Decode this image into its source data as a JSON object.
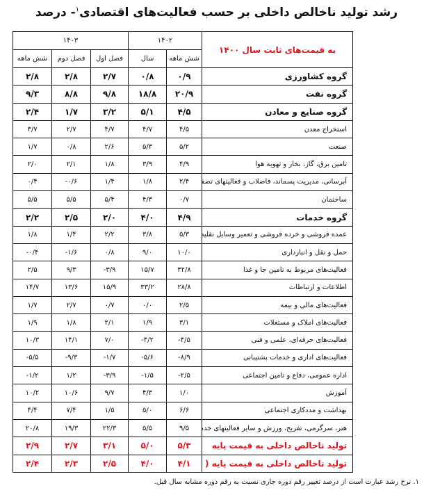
{
  "title": {
    "text": "رشد تولید ناخالص داخلی بر حسب فعالیت‌های اقتصادی",
    "footnote_mark": "۱",
    "suffix": "- درصد"
  },
  "colors": {
    "highlight": "#e0141e"
  },
  "table": {
    "corner_label": "به قیمت‌های ثابت سال ۱۴۰۰",
    "years": [
      "۱۴۰۲",
      "۱۴۰۳"
    ],
    "subheaders": [
      "شش ماهه",
      "سال",
      "فصل اول",
      "فصل دوم",
      "شش ماهه"
    ],
    "rows": [
      {
        "label": "گروه کشاورزی",
        "style": "bold",
        "values": [
          "۰/۹",
          "۰/۸",
          "۲/۷",
          "۲/۸",
          "۲/۸"
        ]
      },
      {
        "label": "گروه نفت",
        "style": "bold",
        "values": [
          "۲۰/۹",
          "۱۸/۸",
          "۹/۸",
          "۸/۸",
          "۹/۳"
        ]
      },
      {
        "label": "گروه صنایع و معادن",
        "style": "bold",
        "values": [
          "۴/۵",
          "۵/۱",
          "۳/۲",
          "۱/۷",
          "۲/۴"
        ]
      },
      {
        "label": "استخراج معدن",
        "style": "",
        "values": [
          "۴/۵",
          "۴/۷",
          "۴/۷",
          "۲/۷",
          "۳/۷"
        ]
      },
      {
        "label": "صنعت",
        "style": "",
        "values": [
          "۵/۲",
          "۵/۳",
          "۲/۶",
          "۰/۸",
          "۱/۷"
        ]
      },
      {
        "label": "تامین برق، گاز، بخار و تهویه هوا",
        "style": "",
        "values": [
          "۴/۹",
          "۳/۹",
          "۱/۸",
          "۲/۱",
          "۲/۰"
        ]
      },
      {
        "label": "آبرسانی، مدیریت پسماند، فاضلاب و فعالیتهای تصفیه",
        "style": "",
        "values": [
          "۲/۴",
          "۱/۸",
          "۱/۴",
          "-۰/۶",
          "۰/۴"
        ]
      },
      {
        "label": "ساختمان",
        "style": "",
        "values": [
          "۰/۷",
          "۴/۳",
          "۵/۴",
          "۵/۵",
          "۵/۵"
        ]
      },
      {
        "label": "گروه خدمات",
        "style": "bold",
        "values": [
          "۴/۹",
          "۴/۰",
          "۲/۰",
          "۲/۵",
          "۲/۲"
        ]
      },
      {
        "label": "عمده فروشی و خرده فروشی و تعمیر وسایل نقلیه موتوری",
        "style": "",
        "values": [
          "۵/۳",
          "۳/۸",
          "۲/۲",
          "۱/۴",
          "۱/۸"
        ]
      },
      {
        "label": "حمل و نقل و انبارداری",
        "style": "",
        "values": [
          "۱۰/۰",
          "۹/۰",
          "۰/۸",
          "-۱/۶",
          "-۰/۴"
        ]
      },
      {
        "label": "فعالیت‌های مربوط به تامین جا و غذا",
        "style": "",
        "values": [
          "۳۲/۸",
          "۱۵/۷",
          "-۳/۹",
          "۹/۳",
          "۲/۵"
        ]
      },
      {
        "label": "اطلاعات و ارتباطات",
        "style": "",
        "values": [
          "۲۸/۸",
          "۳۳/۲",
          "۱۵/۹",
          "۱۳/۶",
          "۱۴/۷"
        ]
      },
      {
        "label": "فعالیت‌های مالی و بیمه",
        "style": "",
        "values": [
          "۲/۵",
          "۰/۰",
          "۰/۷",
          "۲/۷",
          "۱/۷"
        ]
      },
      {
        "label": "فعالیت‌های املاک و مستغلات",
        "style": "",
        "values": [
          "۳/۱",
          "۱/۹",
          "۲/۱",
          "۱/۸",
          "۱/۹"
        ]
      },
      {
        "label": "فعالیت‌های حرفه‌ای، علمی و فنی",
        "style": "",
        "values": [
          "-۴/۵",
          "-۴/۲",
          "۷/۰",
          "۱۴/۱",
          "۱۰/۳"
        ]
      },
      {
        "label": "فعالیت‌های اداری و خدمات پشتیبانی",
        "style": "",
        "values": [
          "-۸/۹",
          "-۵/۶",
          "-۱/۷",
          "-۹/۳",
          "-۵/۵"
        ]
      },
      {
        "label": "اداره عمومی، دفاع و تامین اجتماعی",
        "style": "",
        "values": [
          "-۲/۵",
          "-۱/۵",
          "-۳/۹",
          "۱/۲",
          "-۱/۲"
        ]
      },
      {
        "label": "آموزش",
        "style": "",
        "values": [
          "۱/۰",
          "۴/۳",
          "۹/۷",
          "۱۰/۶",
          "۱۰/۲"
        ]
      },
      {
        "label": "بهداشت و مددکاری اجتماعی",
        "style": "",
        "values": [
          "۶/۶",
          "۵/۰",
          "۱/۵",
          "۷/۴",
          "۴/۴"
        ]
      },
      {
        "label": "هنر، سرگرمی، تفریح، ورزش و سایر فعالیتهای خدماتی",
        "style": "",
        "values": [
          "۹/۵",
          "۵/۵",
          "۲۲/۳",
          "۱۹/۳",
          "۲۰/۸"
        ]
      },
      {
        "label": "تولید ناخالص داخلی به قیمت پایه",
        "style": "red",
        "values": [
          "۵/۳",
          "۵/۰",
          "۳/۱",
          "۲/۷",
          "۲/۹"
        ]
      },
      {
        "label": "تولید ناخالص داخلی به قیمت پایه ( بدون نفت )",
        "style": "red",
        "values": [
          "۴/۱",
          "۴/۰",
          "۲/۵",
          "۲/۳",
          "۲/۴"
        ]
      }
    ]
  },
  "footnote": "۱. نرخ رشد عبارت است از درصد تغییر رقم دوره جاری نسبت به رقم دوره مشابه سال قبل."
}
